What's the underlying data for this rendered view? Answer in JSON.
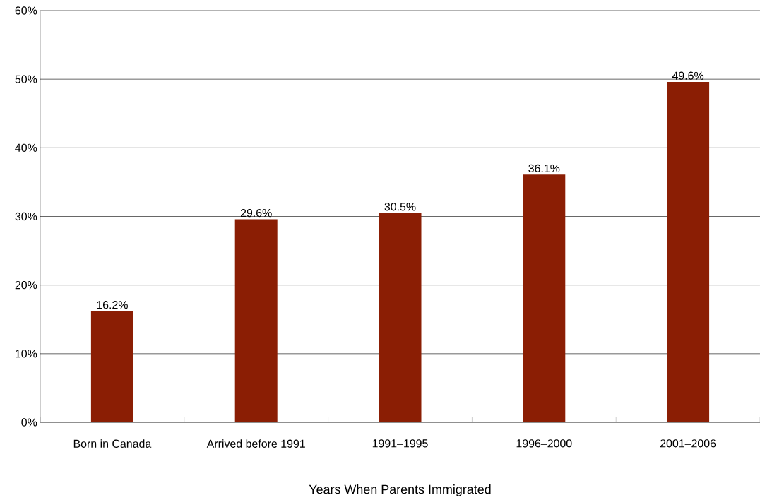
{
  "chart_data": {
    "type": "bar",
    "xlabel": "Years When Parents Immigrated",
    "categories": [
      "Born in Canada",
      "Arrived before 1991",
      "1991–1995",
      "1996–2000",
      "2001–2006"
    ],
    "values": [
      16.2,
      29.6,
      30.5,
      36.1,
      49.6
    ],
    "value_labels": [
      "16.2%",
      "29.6%",
      "30.5%",
      "36.1%",
      "49.6%"
    ],
    "color": "#8b1e04",
    "ylim": [
      0,
      60
    ],
    "yticks": [
      {
        "value": 0,
        "label": "0%"
      },
      {
        "value": 10,
        "label": "10%"
      },
      {
        "value": 20,
        "label": "20%"
      },
      {
        "value": 30,
        "label": "30%"
      },
      {
        "value": 40,
        "label": "40%"
      },
      {
        "value": 50,
        "label": "50%"
      },
      {
        "value": 60,
        "label": "60%"
      }
    ],
    "grid": "y"
  }
}
